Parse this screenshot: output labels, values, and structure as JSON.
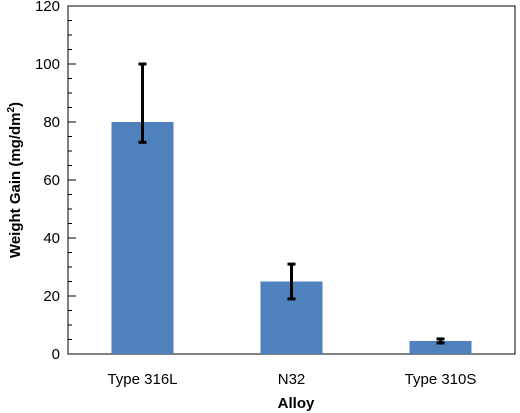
{
  "chart_data": {
    "type": "bar",
    "title": "",
    "xlabel": "Alloy",
    "ylabel_main": "Weight Gain (mg/dm",
    "ylabel_sup": "2",
    "ylabel_end": ")",
    "categories": [
      "Type 316L",
      "N32",
      "Type 310S"
    ],
    "values": [
      80,
      25,
      4.5
    ],
    "error_low": [
      73,
      19,
      3.8
    ],
    "error_high": [
      100,
      31,
      5.2
    ],
    "ylim": [
      0,
      120
    ],
    "yticks": [
      0,
      20,
      40,
      60,
      80,
      100,
      120
    ],
    "y_minor_step": 5,
    "grid": false,
    "bar_color": "#4f81bd"
  }
}
